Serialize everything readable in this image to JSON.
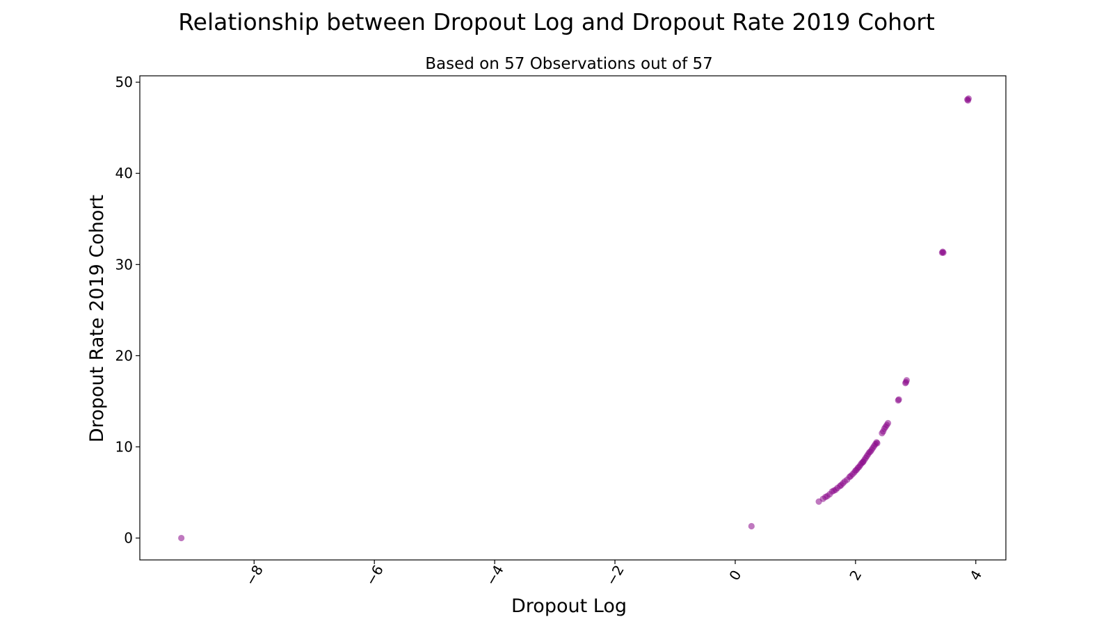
{
  "title": "Relationship between Dropout Log and Dropout Rate 2019 Cohort",
  "subtitle": "Based on 57 Observations out of 57",
  "colors": {
    "point": "#8b0a8b",
    "axis": "#000000",
    "background": "#ffffff"
  },
  "chart_data": {
    "type": "scatter",
    "title": "Relationship between Dropout Log and Dropout Rate 2019 Cohort",
    "subtitle": "Based on 57 Observations out of 57",
    "xlabel": "Dropout Log",
    "ylabel": "Dropout Rate 2019 Cohort",
    "xlim": [
      -9.9,
      4.5
    ],
    "ylim": [
      -2.4,
      50.7
    ],
    "x_ticks": [
      -8,
      -6,
      -4,
      -2,
      0,
      2,
      4
    ],
    "x_tick_labels": [
      "−8",
      "−6",
      "−4",
      "−2",
      "0",
      "2",
      "4"
    ],
    "y_ticks": [
      0,
      10,
      20,
      30,
      40,
      50
    ],
    "y_tick_labels": [
      "0",
      "10",
      "20",
      "30",
      "40",
      "50"
    ],
    "x_tick_rotation": 60,
    "grid": false,
    "series": [
      {
        "x": [
          -9.21,
          0.27,
          1.39,
          1.46,
          1.5,
          1.53,
          1.57,
          1.64,
          1.67,
          1.7,
          1.74,
          1.76,
          1.79,
          1.82,
          1.86,
          1.9,
          1.92,
          1.95,
          1.98,
          2.0,
          2.02,
          2.04,
          2.06,
          2.08,
          2.1,
          2.13,
          2.15,
          2.17,
          2.19,
          2.21,
          2.23,
          2.25,
          2.27,
          2.29,
          2.31,
          2.33,
          2.35,
          2.44,
          2.46,
          2.48,
          2.5,
          2.52,
          2.54,
          2.71,
          2.72,
          2.83,
          2.84,
          2.85,
          3.44,
          3.45,
          3.46,
          3.87,
          3.88,
          3.86,
          1.61,
          2.36,
          2.12
        ],
        "y": [
          0.0,
          1.3,
          4.0,
          4.3,
          4.5,
          4.6,
          4.8,
          5.2,
          5.3,
          5.5,
          5.7,
          5.8,
          6.0,
          6.2,
          6.4,
          6.7,
          6.8,
          7.0,
          7.2,
          7.4,
          7.5,
          7.7,
          7.8,
          8.0,
          8.2,
          8.4,
          8.6,
          8.8,
          9.0,
          9.2,
          9.4,
          9.5,
          9.7,
          9.9,
          10.1,
          10.3,
          10.5,
          11.5,
          11.7,
          12.0,
          12.2,
          12.4,
          12.6,
          15.1,
          15.2,
          17.0,
          17.1,
          17.3,
          31.3,
          31.4,
          31.3,
          48.0,
          48.2,
          48.1,
          5.1,
          10.4,
          8.3
        ]
      }
    ]
  }
}
